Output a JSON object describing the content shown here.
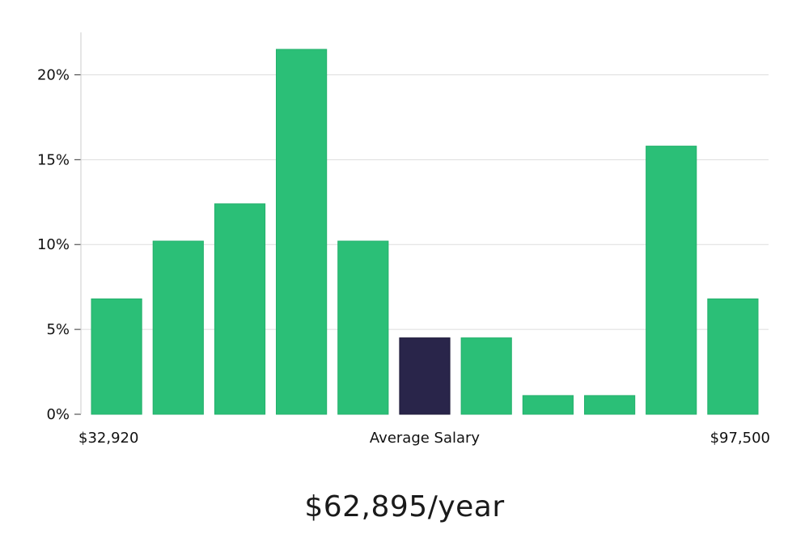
{
  "chart_data": {
    "type": "bar",
    "values": [
      6.8,
      10.2,
      12.4,
      21.5,
      10.2,
      4.5,
      4.5,
      1.1,
      1.1,
      15.8,
      6.8
    ],
    "highlight_index": 5,
    "ylim": [
      0,
      22.5
    ],
    "yticks": [
      0,
      5,
      10,
      15,
      20
    ],
    "ytick_labels": [
      "0%",
      "5%",
      "10%",
      "15%",
      "20%"
    ],
    "x_min_label": "$32,920",
    "x_center_label": "Average Salary",
    "x_max_label": "$97,500",
    "grid": true,
    "colors": {
      "bar": "#2bbf77",
      "highlight": "#29254a",
      "grid": "#dddddd",
      "axis": "#cccccc"
    }
  },
  "salary_text": "$62,895/year"
}
